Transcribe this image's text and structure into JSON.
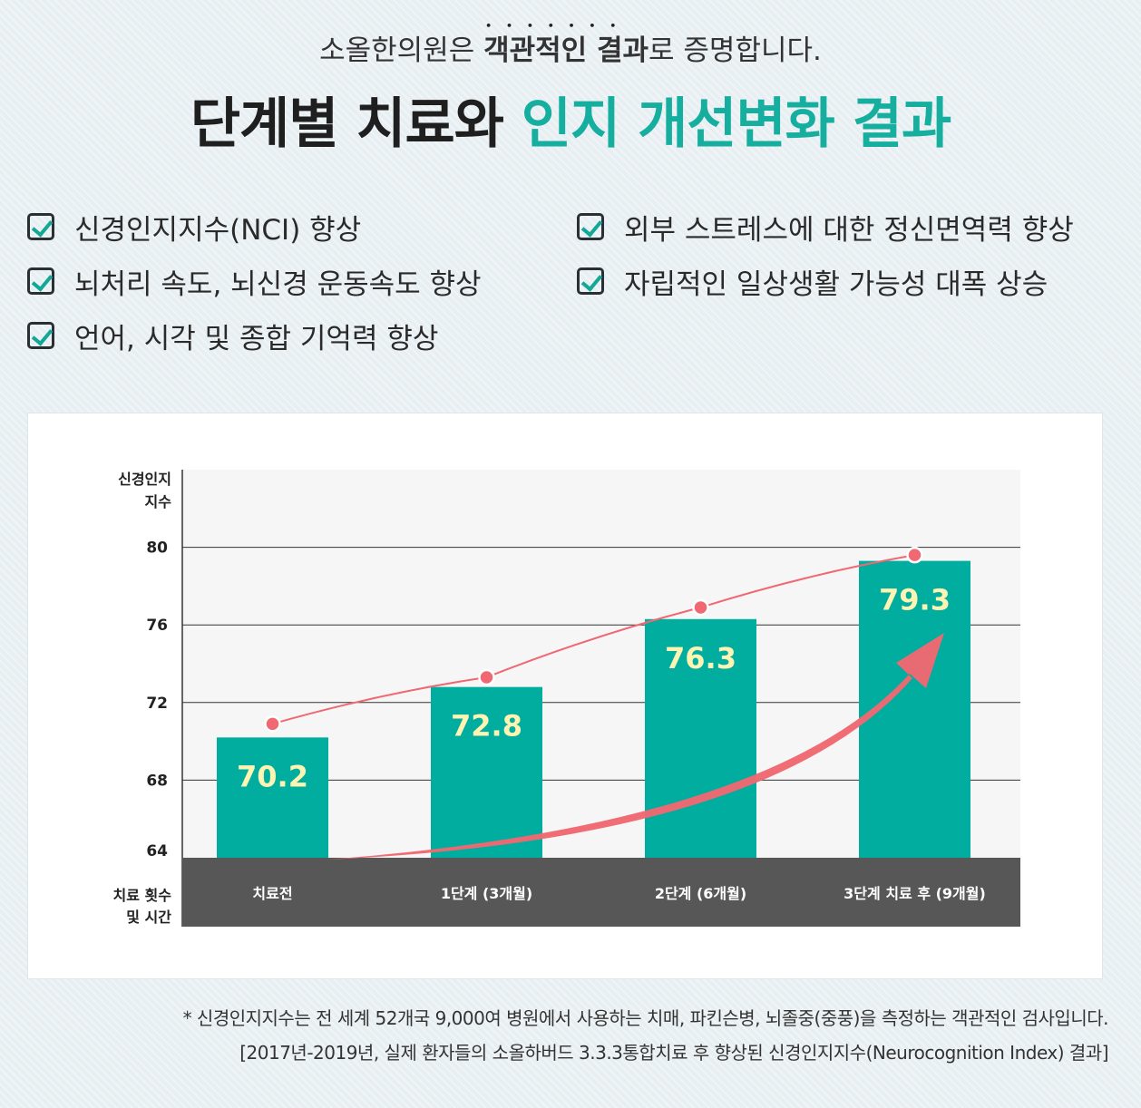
{
  "header": {
    "subtitle_pre": "소올한의원은 ",
    "subtitle_emph": "객관적인 결과",
    "subtitle_post": "로 증명합니다.",
    "title_main": "단계별 치료와 ",
    "title_accent": "인지 개선변화 결과"
  },
  "benefits": [
    "신경인지지수(NCI) 향상",
    "뇌처리 속도, 뇌신경 운동속도 향상",
    "언어, 시각 및 종합 기억력 향상",
    "외부 스트레스에 대한 정신면역력 향상",
    "자립적인 일상생활 가능성 대폭 상승"
  ],
  "colors": {
    "accent": "#16ae9f",
    "bar": "#00ad9f",
    "trend": "#ef6872",
    "label": "#fdf3b3",
    "axis_band": "#575757"
  },
  "chart_data": {
    "type": "bar",
    "ylabel_line1": "신경인지",
    "ylabel_line2": "지수",
    "xlabel_line1": "치료 횟수",
    "xlabel_line2": "및 시간",
    "categories": [
      "치료전",
      "1단계 (3개월)",
      "2단계 (6개월)",
      "3단계 치료 후 (9개월)"
    ],
    "values": [
      70.2,
      72.8,
      76.3,
      79.3
    ],
    "value_labels": [
      "70.2",
      "72.8",
      "76.3",
      "79.3"
    ],
    "trend_points": [
      70.9,
      73.3,
      76.9,
      79.6
    ],
    "yticks": [
      64,
      68,
      72,
      76,
      80
    ],
    "ylim": [
      64,
      84
    ],
    "grid": true,
    "trend_arrow": true
  },
  "footnotes": [
    "* 신경인지지수는 전 세계 52개국 9,000여 병원에서 사용하는 치매, 파킨슨병, 뇌졸중(중풍)을 측정하는 객관적인 검사입니다.",
    "[2017년-2019년, 실제 환자들의 소올하버드 3.3.3통합치료 후 향상된 신경인지지수(Neurocognition Index) 결과]"
  ]
}
